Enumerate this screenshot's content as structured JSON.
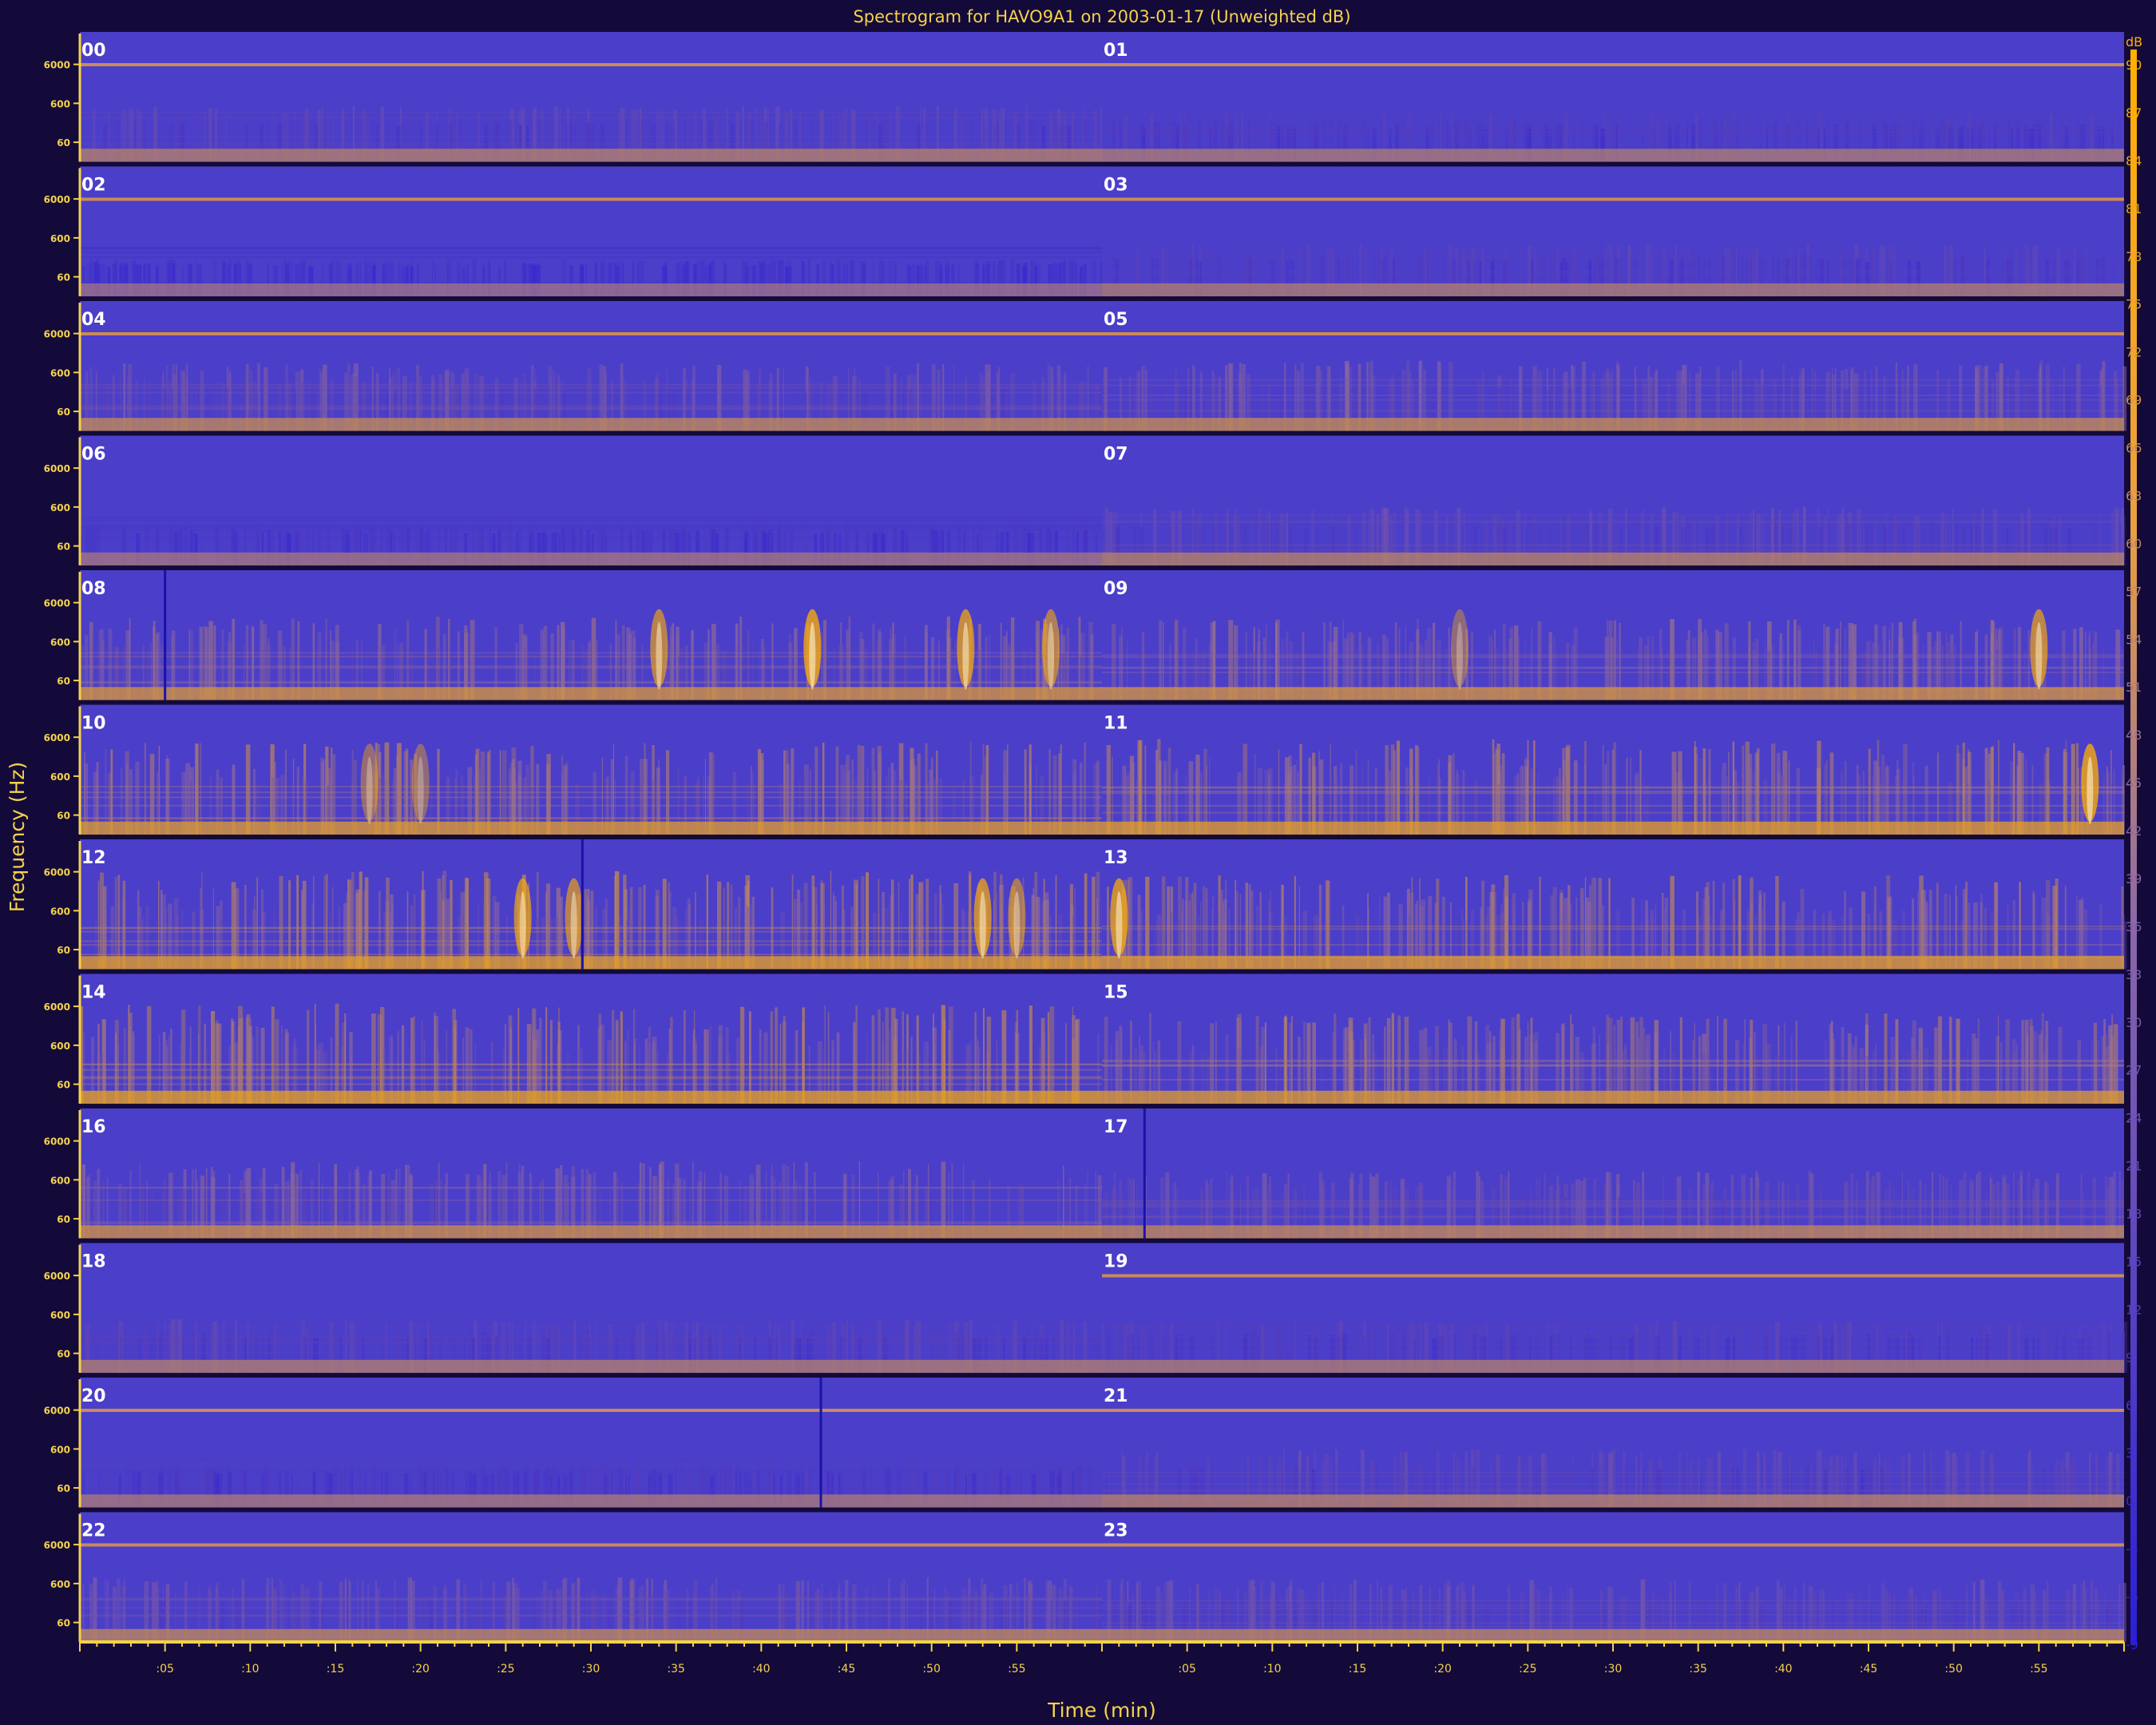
{
  "chart_data": {
    "type": "heatmap",
    "title": "Spectrogram for HAVO9A1 on 2003-01-17 (Unweighted dB)",
    "xlabel": "Time (min)",
    "ylabel": "Frequency (Hz)",
    "y_scale": "log",
    "y_tick_labels": [
      "6000",
      "600",
      "60"
    ],
    "x_tick_labels": [
      ":05",
      ":10",
      ":15",
      ":20",
      ":25",
      ":30",
      ":35",
      ":40",
      ":45",
      ":50",
      ":55"
    ],
    "hours": [
      "00",
      "01",
      "02",
      "03",
      "04",
      "05",
      "06",
      "07",
      "08",
      "09",
      "10",
      "11",
      "12",
      "13",
      "14",
      "15",
      "16",
      "17",
      "18",
      "19",
      "20",
      "21",
      "22",
      "23"
    ],
    "colorbar": {
      "unit": "dB",
      "ticks": [
        90,
        87,
        84,
        81,
        78,
        75,
        72,
        69,
        66,
        63,
        60,
        57,
        54,
        51,
        48,
        45,
        42,
        39,
        36,
        33,
        30,
        27,
        24,
        21,
        18,
        15,
        12,
        9,
        6,
        3,
        0,
        -3,
        -6,
        -9
      ],
      "range": [
        -9,
        90
      ],
      "low_color": "#2a1fd6",
      "high_color": "#ffb000"
    },
    "hourly_activity": [
      0.32,
      0.25,
      0.12,
      0.28,
      0.45,
      0.48,
      0.18,
      0.35,
      0.62,
      0.6,
      0.72,
      0.75,
      0.78,
      0.74,
      0.8,
      0.7,
      0.55,
      0.45,
      0.3,
      0.28,
      0.22,
      0.35,
      0.42,
      0.4
    ],
    "tone_line_hours": [
      "00",
      "01",
      "02",
      "03",
      "04",
      "05",
      "19",
      "20",
      "21",
      "22",
      "23"
    ],
    "dropout_lines": [
      {
        "hour": "08",
        "minute": 5
      },
      {
        "hour": "12",
        "minute": 29.5
      },
      {
        "hour": "17",
        "minute": 2.5
      },
      {
        "hour": "20",
        "minute": 43.5
      }
    ],
    "events": [
      {
        "hour": "08",
        "minute": 34,
        "strength": 0.8
      },
      {
        "hour": "08",
        "minute": 43,
        "strength": 1.0
      },
      {
        "hour": "08",
        "minute": 52,
        "strength": 0.9
      },
      {
        "hour": "08",
        "minute": 57,
        "strength": 0.75
      },
      {
        "hour": "09",
        "minute": 21,
        "strength": 0.5
      },
      {
        "hour": "09",
        "minute": 55,
        "strength": 0.85
      },
      {
        "hour": "10",
        "minute": 17,
        "strength": 0.55
      },
      {
        "hour": "10",
        "minute": 20,
        "strength": 0.5
      },
      {
        "hour": "11",
        "minute": 58,
        "strength": 1.0
      },
      {
        "hour": "12",
        "minute": 26,
        "strength": 0.85
      },
      {
        "hour": "12",
        "minute": 29,
        "strength": 0.8
      },
      {
        "hour": "12",
        "minute": 53,
        "strength": 0.9
      },
      {
        "hour": "12",
        "minute": 55,
        "strength": 0.7
      },
      {
        "hour": "13",
        "minute": 1,
        "strength": 0.95
      }
    ]
  }
}
